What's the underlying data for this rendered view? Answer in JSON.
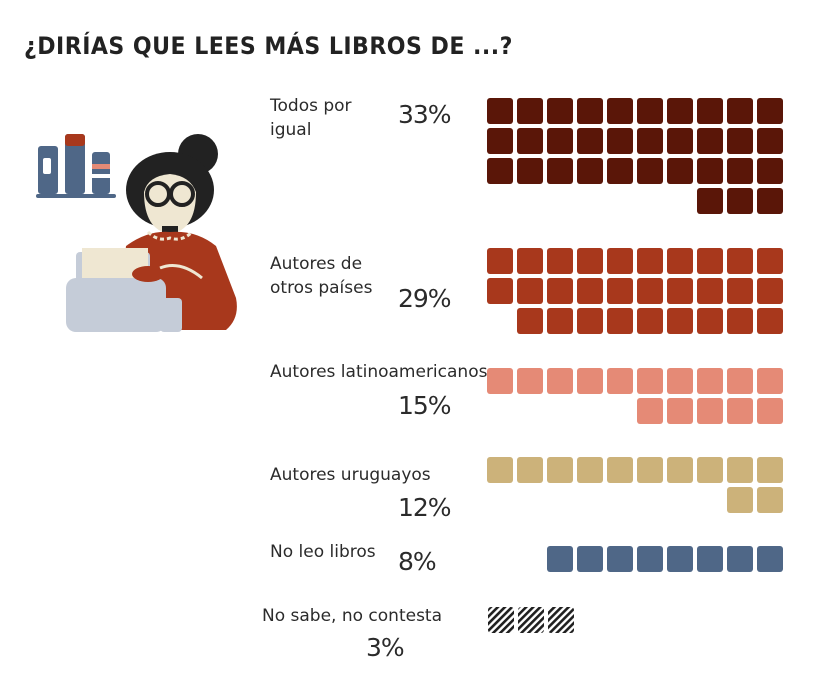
{
  "title": "¿DIRÍAS QUE LEES MÁS LIBROS DE ...?",
  "chart_data": {
    "type": "waffle",
    "unit": "%",
    "categories": [
      "Todos por igual",
      "Autores de otros países",
      "Autores latinoamericanos",
      "Autores uruguayos",
      "No leo libros",
      "No sabe, no contesta"
    ],
    "values": [
      33,
      29,
      15,
      12,
      8,
      3
    ],
    "value_labels": [
      "33%",
      "29%",
      "15%",
      "12%",
      "8%",
      "3%"
    ],
    "colors": [
      "#5a1608",
      "#a8381c",
      "#e58a76",
      "#ccb27a",
      "#4f6787",
      "hatched"
    ]
  }
}
